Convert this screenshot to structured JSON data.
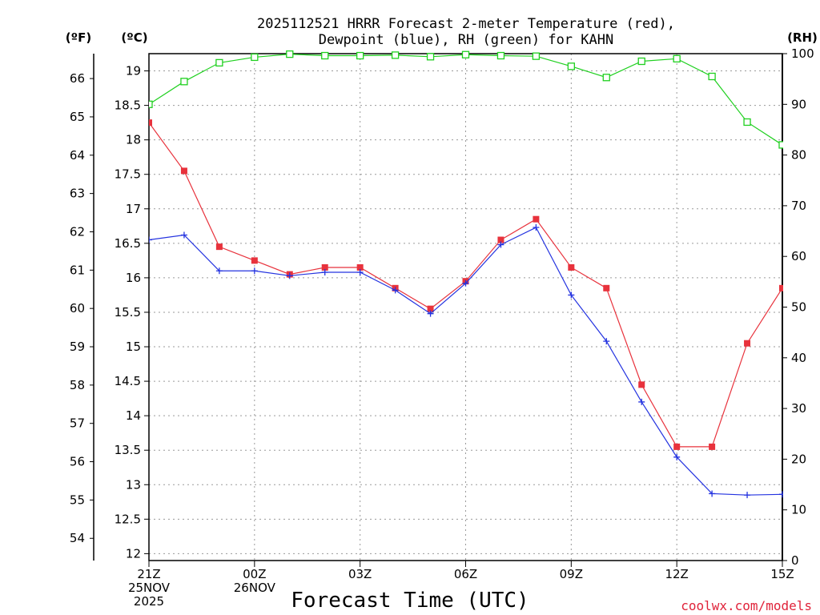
{
  "chart_data": {
    "type": "line",
    "title": "2025112521 HRRR Forecast 2-meter Temperature (red),",
    "subtitle": "Dewpoint (blue), RH (green) for KAHN",
    "xlabel": "Forecast Time (UTC)",
    "credit": "coolwx.com/models",
    "units": {
      "fahrenheit": "(ºF)",
      "celsius": "(ºC)",
      "rh": "(RH)"
    },
    "x_hours": [
      0,
      1,
      2,
      3,
      4,
      5,
      6,
      7,
      8,
      9,
      10,
      11,
      12,
      13,
      14,
      15,
      16,
      17,
      18
    ],
    "x_ticks": [
      {
        "hour": 0,
        "lines": [
          "21Z",
          "25NOV",
          "2025"
        ]
      },
      {
        "hour": 3,
        "lines": [
          "00Z",
          "26NOV"
        ]
      },
      {
        "hour": 6,
        "lines": [
          "03Z"
        ]
      },
      {
        "hour": 9,
        "lines": [
          "06Z"
        ]
      },
      {
        "hour": 12,
        "lines": [
          "09Z"
        ]
      },
      {
        "hour": 15,
        "lines": [
          "12Z"
        ]
      },
      {
        "hour": 18,
        "lines": [
          "15Z"
        ]
      }
    ],
    "ylim_c": [
      11.9,
      19.25
    ],
    "ylim_rh": [
      0,
      100
    ],
    "y_ticks_c": [
      "12",
      "12.5",
      "13",
      "13.5",
      "14",
      "14.5",
      "15",
      "15.5",
      "16",
      "16.5",
      "17",
      "17.5",
      "18",
      "18.5",
      "19"
    ],
    "y_ticks_f": [
      "54",
      "55",
      "56",
      "57",
      "58",
      "59",
      "60",
      "61",
      "62",
      "63",
      "64",
      "65",
      "66"
    ],
    "y_ticks_rh": [
      "0",
      "10",
      "20",
      "30",
      "40",
      "50",
      "60",
      "70",
      "80",
      "90",
      "100"
    ],
    "grid": true,
    "series": [
      {
        "name": "Temperature",
        "color": "#e8323c",
        "marker": "filled-square",
        "values": [
          18.25,
          17.55,
          16.45,
          16.25,
          16.05,
          16.15,
          16.15,
          15.85,
          15.55,
          15.95,
          16.55,
          16.85,
          16.15,
          15.85,
          14.45,
          13.55,
          13.55,
          15.05,
          15.85
        ]
      },
      {
        "name": "Dewpoint",
        "color": "#2433e0",
        "marker": "plus",
        "values": [
          16.55,
          16.62,
          16.1,
          16.1,
          16.03,
          16.08,
          16.08,
          15.82,
          15.48,
          15.92,
          16.48,
          16.73,
          15.75,
          15.08,
          14.2,
          13.4,
          12.87,
          12.85,
          12.86
        ]
      },
      {
        "name": "RH",
        "color": "#20d020",
        "marker": "open-square",
        "axis": "rh",
        "values": [
          90,
          94.5,
          98.2,
          99.3,
          99.9,
          99.6,
          99.6,
          99.7,
          99.4,
          99.8,
          99.6,
          99.5,
          97.5,
          95.3,
          98.5,
          99,
          95.5,
          86.5,
          82
        ]
      }
    ]
  }
}
